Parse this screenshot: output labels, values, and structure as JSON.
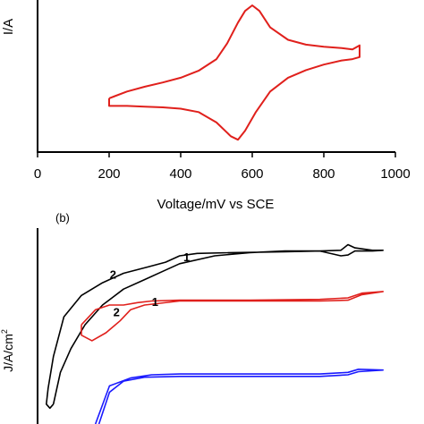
{
  "chart_data": [
    {
      "type": "line",
      "panel_label": "",
      "ylabel_visible": "I/A",
      "xlabel": "Voltage/mV vs SCE",
      "xlim": [
        0,
        1000
      ],
      "xticks": [
        0,
        200,
        400,
        600,
        800,
        1000
      ],
      "axis_color": "#000000",
      "series": [
        {
          "color": "#e0201c",
          "points": [
            [
              200,
              -0.35
            ],
            [
              250,
              -0.25
            ],
            [
              300,
              -0.18
            ],
            [
              350,
              -0.12
            ],
            [
              400,
              -0.05
            ],
            [
              450,
              0.05
            ],
            [
              500,
              0.22
            ],
            [
              530,
              0.45
            ],
            [
              560,
              0.75
            ],
            [
              580,
              0.92
            ],
            [
              600,
              1.0
            ],
            [
              620,
              0.92
            ],
            [
              650,
              0.68
            ],
            [
              700,
              0.5
            ],
            [
              750,
              0.43
            ],
            [
              800,
              0.4
            ],
            [
              850,
              0.38
            ],
            [
              880,
              0.36
            ],
            [
              900,
              0.42
            ],
            [
              900,
              0.25
            ],
            [
              880,
              0.22
            ],
            [
              850,
              0.2
            ],
            [
              800,
              0.14
            ],
            [
              750,
              0.06
            ],
            [
              700,
              -0.05
            ],
            [
              650,
              -0.25
            ],
            [
              610,
              -0.55
            ],
            [
              580,
              -0.82
            ],
            [
              560,
              -0.95
            ],
            [
              540,
              -0.9
            ],
            [
              500,
              -0.7
            ],
            [
              450,
              -0.55
            ],
            [
              400,
              -0.5
            ],
            [
              350,
              -0.48
            ],
            [
              300,
              -0.47
            ],
            [
              250,
              -0.46
            ],
            [
              200,
              -0.46
            ],
            [
              200,
              -0.35
            ]
          ]
        }
      ]
    },
    {
      "type": "line",
      "panel_label": "(b)",
      "ylabel": "J/A/cm",
      "ylabel_sup": "2",
      "axis_color": "#000000",
      "series": [
        {
          "color": "#000000",
          "points": [
            [
              0.04,
              -0.95
            ],
            [
              0.06,
              -0.55
            ],
            [
              0.09,
              -0.25
            ],
            [
              0.13,
              0.05
            ],
            [
              0.18,
              0.3
            ],
            [
              0.24,
              0.5
            ],
            [
              0.3,
              0.62
            ],
            [
              0.35,
              0.72
            ],
            [
              0.4,
              0.82
            ],
            [
              0.5,
              0.92
            ],
            [
              0.6,
              0.96
            ],
            [
              0.7,
              0.98
            ],
            [
              0.8,
              0.98
            ],
            [
              0.86,
              0.99
            ],
            [
              0.88,
              1.06
            ],
            [
              0.9,
              1.02
            ],
            [
              0.95,
              0.99
            ],
            [
              0.98,
              0.99
            ],
            [
              0.95,
              0.98
            ],
            [
              0.9,
              0.98
            ],
            [
              0.88,
              0.93
            ],
            [
              0.86,
              0.92
            ],
            [
              0.8,
              0.98
            ],
            [
              0.7,
              0.97
            ],
            [
              0.55,
              0.96
            ],
            [
              0.45,
              0.95
            ],
            [
              0.4,
              0.92
            ],
            [
              0.36,
              0.84
            ],
            [
              0.31,
              0.78
            ],
            [
              0.24,
              0.7
            ],
            [
              0.18,
              0.58
            ],
            [
              0.12,
              0.42
            ],
            [
              0.07,
              0.15
            ],
            [
              0.04,
              -0.35
            ],
            [
              0.025,
              -0.75
            ],
            [
              0.02,
              -0.95
            ],
            [
              0.03,
              -1.0
            ],
            [
              0.04,
              -0.95
            ]
          ]
        },
        {
          "color": "#e0201c",
          "points": [
            [
              0.12,
              0.05
            ],
            [
              0.16,
              0.24
            ],
            [
              0.2,
              0.3
            ],
            [
              0.24,
              0.3
            ],
            [
              0.28,
              0.33
            ],
            [
              0.32,
              0.35
            ],
            [
              0.4,
              0.36
            ],
            [
              0.6,
              0.36
            ],
            [
              0.8,
              0.37
            ],
            [
              0.88,
              0.39
            ],
            [
              0.92,
              0.45
            ],
            [
              0.98,
              0.47
            ],
            [
              0.92,
              0.43
            ],
            [
              0.88,
              0.36
            ],
            [
              0.8,
              0.35
            ],
            [
              0.6,
              0.35
            ],
            [
              0.4,
              0.35
            ],
            [
              0.3,
              0.3
            ],
            [
              0.26,
              0.24
            ],
            [
              0.23,
              0.1
            ],
            [
              0.19,
              -0.05
            ],
            [
              0.15,
              -0.15
            ],
            [
              0.12,
              -0.08
            ],
            [
              0.12,
              0.05
            ]
          ]
        },
        {
          "color": "#1a1aff",
          "points": [
            [
              0.16,
              -1.2
            ],
            [
              0.2,
              -0.72
            ],
            [
              0.26,
              -0.62
            ],
            [
              0.32,
              -0.58
            ],
            [
              0.4,
              -0.57
            ],
            [
              0.6,
              -0.57
            ],
            [
              0.8,
              -0.57
            ],
            [
              0.88,
              -0.55
            ],
            [
              0.91,
              -0.51
            ],
            [
              0.98,
              -0.52
            ],
            [
              0.91,
              -0.54
            ],
            [
              0.88,
              -0.58
            ],
            [
              0.8,
              -0.6
            ],
            [
              0.6,
              -0.6
            ],
            [
              0.4,
              -0.6
            ],
            [
              0.3,
              -0.61
            ],
            [
              0.24,
              -0.66
            ],
            [
              0.2,
              -0.8
            ],
            [
              0.17,
              -1.2
            ]
          ]
        }
      ],
      "annotations": [
        {
          "text": "1",
          "x": 0.42,
          "y": 0.85,
          "series_index": 0
        },
        {
          "text": "2",
          "x": 0.21,
          "y": 0.63,
          "series_index": 0
        },
        {
          "text": "1",
          "x": 0.33,
          "y": 0.29,
          "series_index": 1
        },
        {
          "text": "2",
          "x": 0.22,
          "y": 0.16,
          "series_index": 1
        }
      ]
    }
  ]
}
